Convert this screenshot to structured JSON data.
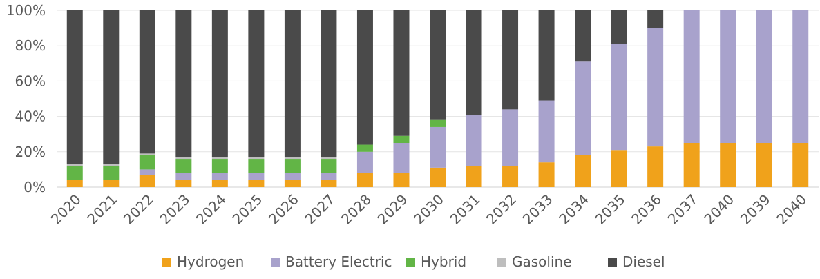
{
  "chart_data": {
    "type": "bar",
    "stacked": true,
    "percent": true,
    "title": "",
    "xlabel": "",
    "ylabel": "",
    "ylim": [
      0,
      100
    ],
    "y_ticks": [
      "0%",
      "20%",
      "40%",
      "60%",
      "80%",
      "100%"
    ],
    "grid": true,
    "legend_position": "bottom",
    "categories": [
      "2020",
      "2021",
      "2022",
      "2023",
      "2024",
      "2025",
      "2026",
      "2027",
      "2028",
      "2029",
      "2030",
      "2031",
      "2032",
      "2033",
      "2034",
      "2035",
      "2036",
      "2037",
      "2040",
      "2039",
      "2040"
    ],
    "series": [
      {
        "name": "Hydrogen",
        "color": "#F0A21B",
        "values": [
          4,
          4,
          7,
          4,
          4,
          4,
          4,
          4,
          8,
          8,
          11,
          12,
          12,
          14,
          18,
          21,
          23,
          25,
          25,
          25,
          25
        ]
      },
      {
        "name": "Battery Electric",
        "color": "#A8A2CC",
        "values": [
          0,
          0,
          3,
          4,
          4,
          4,
          4,
          4,
          12,
          17,
          23,
          29,
          32,
          35,
          53,
          60,
          67,
          75,
          75,
          75,
          75
        ]
      },
      {
        "name": "Hybrid",
        "color": "#62B546",
        "values": [
          8,
          8,
          8,
          8,
          8,
          8,
          8,
          8,
          4,
          4,
          4,
          0,
          0,
          0,
          0,
          0,
          0,
          0,
          0,
          0,
          0
        ]
      },
      {
        "name": "Gasoline",
        "color": "#BEBEBE",
        "values": [
          1,
          1,
          1,
          1,
          1,
          1,
          1,
          1,
          0,
          0,
          0,
          0,
          0,
          0,
          0,
          0,
          0,
          0,
          0,
          0,
          0
        ]
      },
      {
        "name": "Diesel",
        "color": "#4A4A4A",
        "values": [
          87,
          87,
          81,
          83,
          83,
          83,
          83,
          83,
          76,
          71,
          62,
          59,
          56,
          51,
          29,
          19,
          10,
          0,
          0,
          0,
          0
        ]
      }
    ]
  }
}
